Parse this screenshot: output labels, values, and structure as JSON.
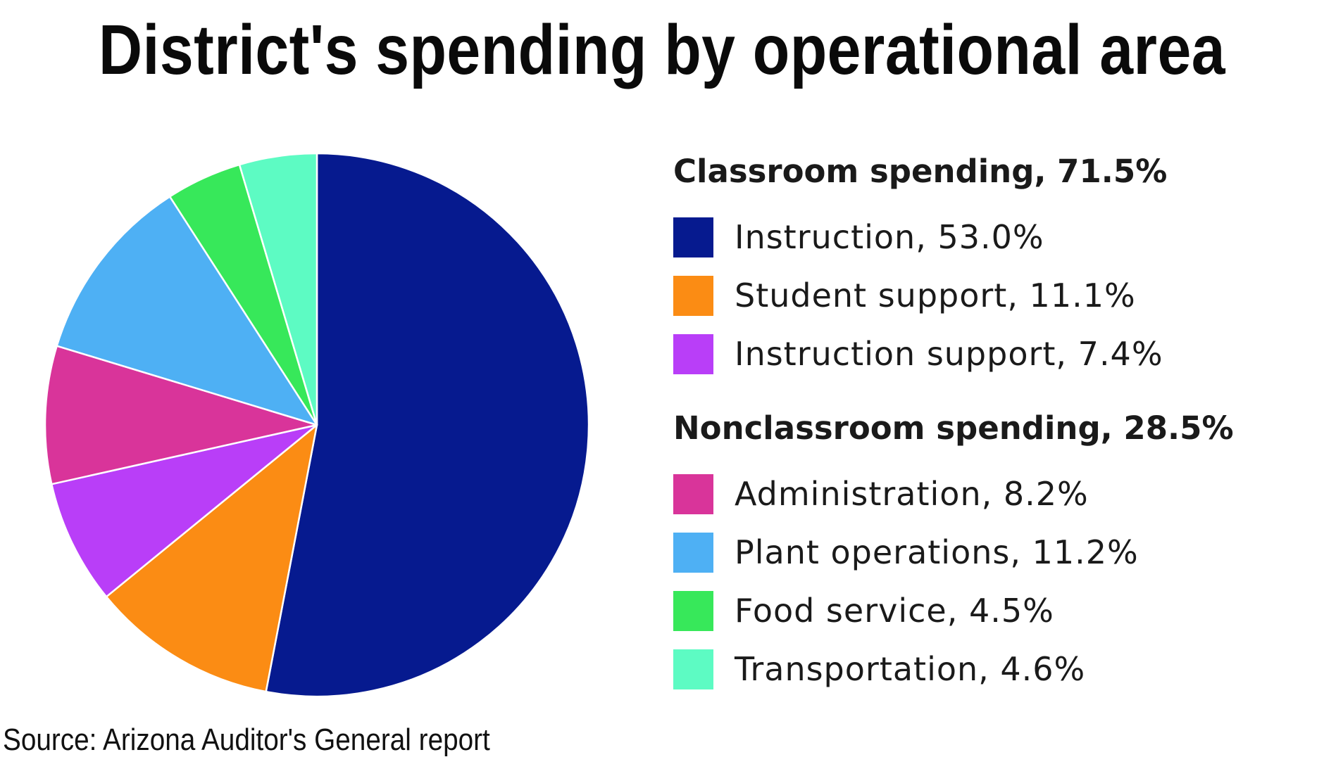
{
  "title": "District's spending by operational area",
  "source": "Source: Arizona Auditor's General report",
  "chart_data": {
    "type": "pie",
    "start_angle_deg": 0,
    "direction": "clockwise",
    "slices": [
      {
        "label": "Instruction",
        "value": 53.0,
        "color": "#061a8f"
      },
      {
        "label": "Student support",
        "value": 11.1,
        "color": "#fb8c14"
      },
      {
        "label": "Instruction support",
        "value": 7.4,
        "color": "#b93ef8"
      },
      {
        "label": "Administration",
        "value": 8.2,
        "color": "#d9349a"
      },
      {
        "label": "Plant operations",
        "value": 11.2,
        "color": "#4eb0f4"
      },
      {
        "label": "Food service",
        "value": 4.5,
        "color": "#37e85a"
      },
      {
        "label": "Transportation",
        "value": 4.6,
        "color": "#5dfbc3"
      }
    ],
    "legend": {
      "placement": "right",
      "groups": [
        {
          "heading": "Classroom spending, 71.5%",
          "items": [
            {
              "text": "Instruction, 53.0%",
              "color": "#061a8f"
            },
            {
              "text": "Student support, 11.1%",
              "color": "#fb8c14"
            },
            {
              "text": "Instruction support, 7.4%",
              "color": "#b93ef8"
            }
          ]
        },
        {
          "heading": "Nonclassroom spending, 28.5%",
          "items": [
            {
              "text": "Administration, 8.2%",
              "color": "#d9349a"
            },
            {
              "text": "Plant operations, 11.2%",
              "color": "#4eb0f4"
            },
            {
              "text": "Food service, 4.5%",
              "color": "#37e85a"
            },
            {
              "text": "Transportation, 4.6%",
              "color": "#5dfbc3"
            }
          ]
        }
      ]
    }
  }
}
